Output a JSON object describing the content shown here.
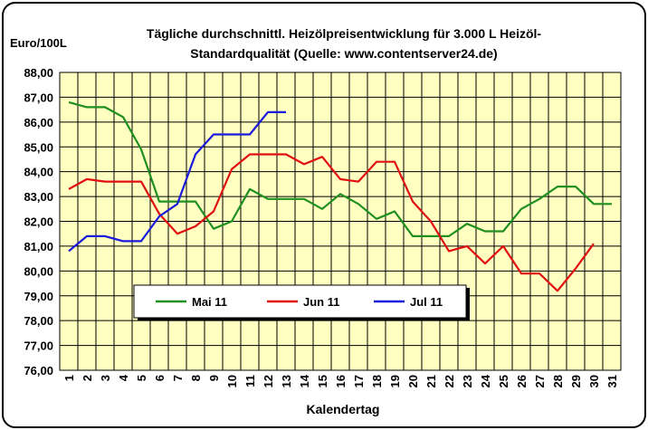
{
  "chart_data": {
    "type": "line",
    "title": "Tägliche durchschnittl. Heizölpreisentwicklung für 3.000 L Heizöl-",
    "subtitle": "Standardqualität (Quelle: www.contentserver24.de)",
    "ylabel": "Euro/100L",
    "xlabel": "Kalendertag",
    "ylim": [
      76,
      88
    ],
    "xlim": [
      1,
      31
    ],
    "grid": true,
    "legend_placement": "bottom-center",
    "y_ticks": [
      "76,00",
      "77,00",
      "78,00",
      "79,00",
      "80,00",
      "81,00",
      "82,00",
      "83,00",
      "84,00",
      "85,00",
      "86,00",
      "87,00",
      "88,00"
    ],
    "x_ticks": [
      "1",
      "2",
      "3",
      "4",
      "5",
      "6",
      "7",
      "8",
      "9",
      "10",
      "11",
      "12",
      "13",
      "14",
      "15",
      "16",
      "17",
      "18",
      "19",
      "20",
      "21",
      "22",
      "23",
      "24",
      "25",
      "26",
      "27",
      "28",
      "29",
      "30",
      "31"
    ],
    "series": [
      {
        "name": "Mai 11",
        "color": "#1f8f1f",
        "x": [
          1,
          2,
          3,
          4,
          5,
          6,
          7,
          8,
          9,
          10,
          11,
          12,
          13,
          14,
          15,
          16,
          17,
          18,
          19,
          20,
          21,
          22,
          23,
          24,
          25,
          26,
          27,
          28,
          29,
          30,
          31
        ],
        "values": [
          86.8,
          86.6,
          86.6,
          86.2,
          84.9,
          82.8,
          82.8,
          82.8,
          81.7,
          82.0,
          83.3,
          82.9,
          82.9,
          82.9,
          82.5,
          83.1,
          82.7,
          82.1,
          82.4,
          81.4,
          81.4,
          81.4,
          81.9,
          81.6,
          81.6,
          82.5,
          82.9,
          83.4,
          83.4,
          82.7,
          82.7
        ]
      },
      {
        "name": "Jun 11",
        "color": "#e01010",
        "x": [
          1,
          2,
          3,
          4,
          5,
          6,
          7,
          8,
          9,
          10,
          11,
          12,
          13,
          14,
          15,
          16,
          17,
          18,
          19,
          20,
          21,
          22,
          23,
          24,
          25,
          26,
          27,
          28,
          29,
          30
        ],
        "values": [
          83.3,
          83.7,
          83.6,
          83.6,
          83.6,
          82.3,
          81.5,
          81.8,
          82.4,
          84.1,
          84.7,
          84.7,
          84.7,
          84.3,
          84.6,
          83.7,
          83.6,
          84.4,
          84.4,
          82.8,
          82.0,
          80.8,
          81.0,
          80.3,
          81.0,
          79.9,
          79.9,
          79.2,
          80.1,
          81.1
        ]
      },
      {
        "name": "Jul 11",
        "color": "#1a1adc",
        "x": [
          1,
          2,
          3,
          4,
          5,
          6,
          7,
          8,
          9,
          10,
          11,
          12,
          13
        ],
        "values": [
          80.8,
          81.4,
          81.4,
          81.2,
          81.2,
          82.2,
          82.7,
          84.7,
          85.5,
          85.5,
          85.5,
          86.4,
          86.4
        ]
      }
    ]
  }
}
